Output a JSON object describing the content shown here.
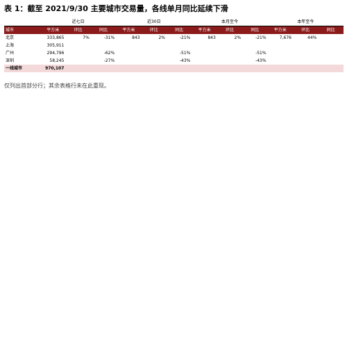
{
  "title": "表 1：截至 2021/9/30 主要城市交易量，各线单月同比延续下滑",
  "table": {
    "group_headers": [
      "近七日",
      "近30日",
      "本月至今",
      "本年至今"
    ],
    "sub_headers": [
      "城市",
      "平方米",
      "环比",
      "同比",
      "平方米",
      "环比",
      "同比",
      "平方米",
      "环比",
      "同比",
      "平方米",
      "环比",
      "同比"
    ],
    "rows": [
      {
        "city": "北京",
        "cells": [
          "333,865",
          "7%",
          "-31%",
          "843",
          "2%",
          "-21%",
          "843",
          "2%",
          "-21%",
          "7,676",
          "44%",
          ""
        ]
      },
      {
        "city": "上海",
        "cells": [
          "305,911",
          "",
          "",
          "",
          "",
          "",
          "",
          "",
          "",
          "",
          "",
          ""
        ]
      },
      {
        "city": "广州",
        "cells": [
          "294,796",
          "",
          "-62%",
          "",
          "",
          "-51%",
          "",
          "",
          "-51%",
          "",
          "",
          ""
        ]
      },
      {
        "city": "深圳",
        "cells": [
          "58,245",
          "",
          "-27%",
          "",
          "",
          "-43%",
          "",
          "",
          "-43%",
          "",
          "",
          ""
        ]
      },
      {
        "city": "一线城市",
        "tier": true,
        "cells": [
          "970,107",
          "",
          "",
          "",
          "",
          "",
          "",
          "",
          "",
          "",
          "",
          ""
        ]
      }
    ]
  },
  "note": "仅列出首部分行；其余表格行未在此重现。"
}
